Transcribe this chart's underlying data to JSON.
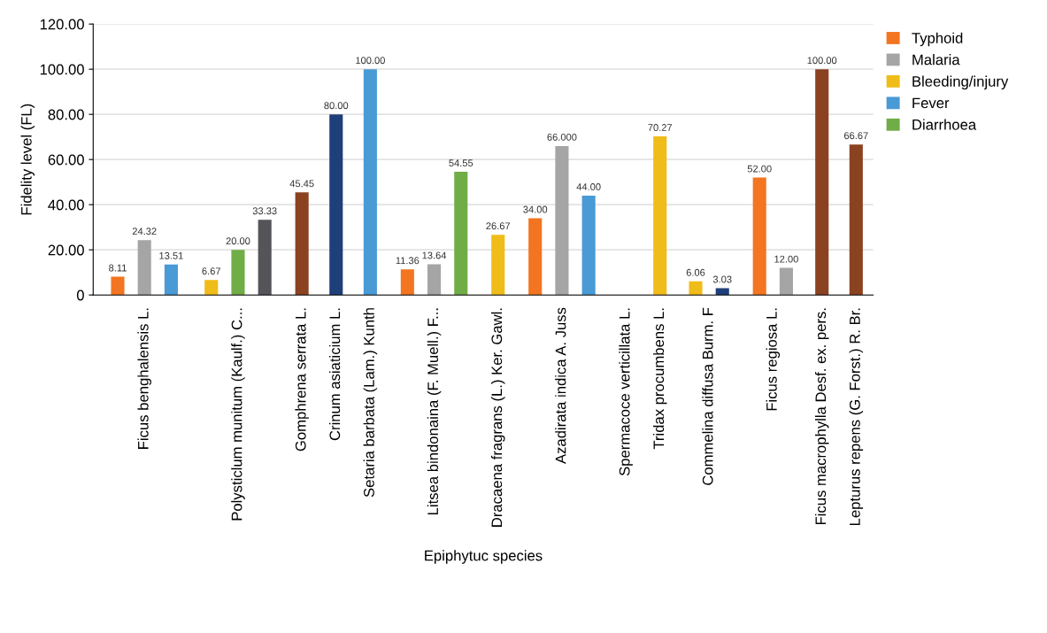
{
  "chart_data": {
    "type": "bar",
    "xlabel": "Epiphytuc species",
    "ylabel": "Fidelity level (FL)",
    "categories": [
      "Ficus benghalensis L.",
      "Polysticlum munitum (Kaulf.) C...",
      "Gomphrena serrata L.",
      "Crinum asiaticium L.",
      "Setaria barbata (Lam.) Kunth",
      "Litsea bindonaina (F. Muell.) F...",
      "Dracaena fragrans (L.) Ker. Gawl.",
      "Azadirata indica A. Juss",
      "Spermacoce verticillata L.",
      "Tridax procumbens L.",
      "Commelina diffusa Burm. F",
      "Ficus regiosa L.",
      "Ficus macrophylla Desf. ex. pers.",
      "Lepturus repens (G. Forst.) R. Br."
    ],
    "series": [
      {
        "name": "Typhoid",
        "color": "#f37521",
        "values": [
          8.11,
          null,
          null,
          null,
          null,
          11.36,
          null,
          34.0,
          null,
          null,
          null,
          52.0,
          null,
          null
        ],
        "value_labels": [
          "8.11",
          null,
          null,
          null,
          null,
          "11.36",
          null,
          "34.00",
          null,
          null,
          null,
          "52.00",
          null,
          null
        ]
      },
      {
        "name": "Malaria",
        "color": "#a5a5a5",
        "values": [
          24.32,
          null,
          null,
          null,
          null,
          13.64,
          null,
          66.0,
          null,
          null,
          null,
          12.0,
          null,
          null
        ],
        "value_labels": [
          "24.32",
          null,
          null,
          null,
          null,
          "13.64",
          null,
          "66.000",
          null,
          null,
          null,
          "12.00",
          null,
          null
        ]
      },
      {
        "name": "Bleeding/injury",
        "color": "#f0bc19",
        "values": [
          null,
          6.67,
          null,
          null,
          null,
          null,
          26.67,
          null,
          null,
          70.27,
          6.06,
          null,
          null,
          null
        ],
        "value_labels": [
          null,
          "6.67",
          null,
          null,
          null,
          null,
          "26.67",
          null,
          null,
          "70.27",
          "6.06",
          null,
          null,
          null
        ]
      },
      {
        "name": "Fever",
        "color": "#4a9ad6",
        "values": [
          13.51,
          null,
          null,
          null,
          100.0,
          null,
          null,
          44.0,
          null,
          null,
          null,
          null,
          null,
          null
        ],
        "value_labels": [
          "13.51",
          null,
          null,
          null,
          "100.00",
          null,
          null,
          "44.00",
          null,
          null,
          null,
          null,
          null,
          null
        ]
      },
      {
        "name": "Diarrhoea",
        "color": "#70ad47",
        "values": [
          null,
          20.0,
          null,
          null,
          null,
          54.55,
          null,
          null,
          null,
          null,
          null,
          null,
          null,
          null
        ],
        "value_labels": [
          null,
          "20.00",
          null,
          null,
          null,
          "54.55",
          null,
          null,
          null,
          null,
          null,
          null,
          null,
          null
        ]
      },
      {
        "color": "#555559",
        "values": [
          null,
          33.33,
          null,
          null,
          null,
          null,
          null,
          null,
          null,
          null,
          null,
          null,
          null,
          null
        ],
        "value_labels": [
          null,
          "33.33",
          null,
          null,
          null,
          null,
          null,
          null,
          null,
          null,
          null,
          null,
          null,
          null
        ]
      },
      {
        "color": "#8b4220",
        "values": [
          null,
          null,
          45.45,
          null,
          null,
          null,
          null,
          null,
          null,
          null,
          null,
          null,
          100.0,
          66.67
        ],
        "value_labels": [
          null,
          null,
          "45.45",
          null,
          null,
          null,
          null,
          null,
          null,
          null,
          null,
          null,
          "100.00",
          "66.67"
        ]
      },
      {
        "color": "#1f3f7a",
        "values": [
          null,
          null,
          null,
          80.0,
          null,
          null,
          null,
          null,
          null,
          null,
          3.03,
          null,
          null,
          null
        ],
        "value_labels": [
          null,
          null,
          null,
          "80.00",
          null,
          null,
          null,
          null,
          null,
          null,
          "3.03",
          null,
          null,
          null
        ]
      }
    ],
    "ylim": [
      0,
      120
    ],
    "yticks": [
      0,
      {
        "value": 20,
        "label": "20.00"
      },
      {
        "value": 40,
        "label": "40.00"
      },
      {
        "value": 60,
        "label": "60.00"
      },
      {
        "value": 80,
        "label": "80.00"
      },
      {
        "value": 100,
        "label": "100.00"
      },
      {
        "value": 120,
        "label": "120.00"
      }
    ],
    "grid": "y",
    "legend": "top right"
  }
}
